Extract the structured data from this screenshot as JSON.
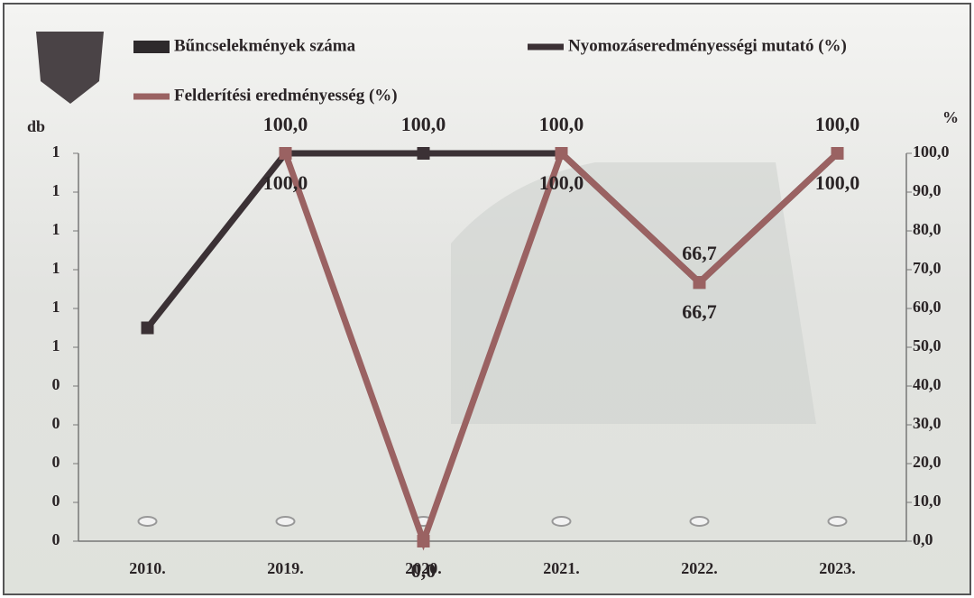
{
  "chart_data": {
    "type": "combo",
    "categories": [
      "2010.",
      "2019.",
      "2020.",
      "2021.",
      "2022.",
      "2023."
    ],
    "series": [
      {
        "name": "Bűncselekmények száma",
        "type": "bar",
        "color": "#2e2a2c",
        "values": [
          0,
          0,
          0,
          0,
          0,
          0
        ]
      },
      {
        "name": "Nyomozáseredményességi mutató (%)",
        "type": "line",
        "axis": "y2",
        "color": "#3b3135",
        "values": [
          55,
          100,
          100,
          100,
          66.7,
          100
        ],
        "value_labels": [
          null,
          "100,0",
          "100,0",
          "100,0",
          "66,7",
          "100,0"
        ]
      },
      {
        "name": "Felderítési eredményesség (%)",
        "type": "line",
        "axis": "y2",
        "color": "#9a6262",
        "values": [
          null,
          100,
          0,
          100,
          66.7,
          100
        ],
        "value_labels": [
          null,
          "100,0",
          "0,0",
          "100,0",
          "66,7",
          "100,0"
        ]
      }
    ],
    "y_label": "db",
    "y2_label": "%",
    "ylim": [
      0,
      1
    ],
    "yticks": [
      0,
      {
        "value": 0.1,
        "label": "0"
      },
      {
        "value": 0.2,
        "label": "0"
      },
      {
        "value": 0.3,
        "label": "0"
      },
      {
        "value": 0.4,
        "label": "0"
      },
      {
        "value": 0.5,
        "label": "1"
      },
      {
        "value": 0.6,
        "label": "1"
      },
      {
        "value": 0.7,
        "label": "1"
      },
      {
        "value": 0.8,
        "label": "1"
      },
      {
        "value": 0.9,
        "label": "1"
      },
      1
    ],
    "y2lim": [
      0,
      100
    ],
    "y2ticks": [
      {
        "value": 0,
        "label": "0,0"
      },
      {
        "value": 10,
        "label": "10,0"
      },
      {
        "value": 20,
        "label": "20,0"
      },
      {
        "value": 30,
        "label": "30,0"
      },
      {
        "value": 40,
        "label": "40,0"
      },
      {
        "value": 50,
        "label": "50,0"
      },
      {
        "value": 60,
        "label": "60,0"
      },
      {
        "value": 70,
        "label": "70,0"
      },
      {
        "value": 80,
        "label": "80,0"
      },
      {
        "value": 90,
        "label": "90,0"
      },
      {
        "value": 100,
        "label": "100,0"
      }
    ]
  }
}
